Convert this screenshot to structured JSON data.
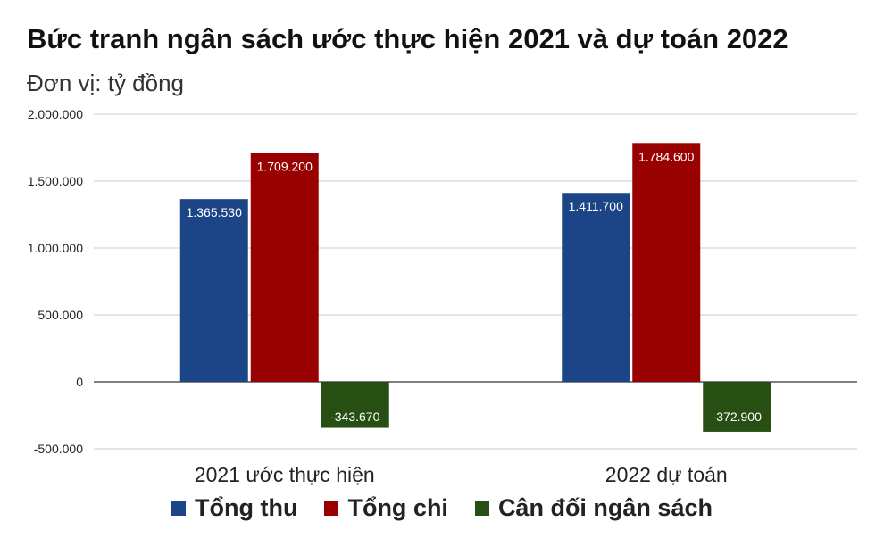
{
  "chart_data": {
    "type": "bar",
    "title": "Bức tranh ngân sách ước thực hiện 2021 và dự toán 2022",
    "subtitle": "Đơn vị: tỷ đồng",
    "categories": [
      "2021 ước thực hiện",
      "2022 dự toán"
    ],
    "series": [
      {
        "name": "Tổng thu",
        "color": "#1c4587",
        "values": [
          1365530,
          1411700
        ],
        "labels": [
          "1.365.530",
          "1.411.700"
        ]
      },
      {
        "name": "Tổng chi",
        "color": "#990000",
        "values": [
          1709200,
          1784600
        ],
        "labels": [
          "1.709.200",
          "1.784.600"
        ]
      },
      {
        "name": "Cân đối ngân sách",
        "color": "#274e13",
        "values": [
          -343670,
          -372900
        ],
        "labels": [
          "-343.670",
          "-372.900"
        ]
      }
    ],
    "ylim": [
      -500000,
      2000000
    ],
    "yticks": [
      {
        "value": 2000000,
        "label": "2.000.000"
      },
      {
        "value": 1500000,
        "label": "1.500.000"
      },
      {
        "value": 1000000,
        "label": "1.000.000"
      },
      {
        "value": 500000,
        "label": "500.000"
      },
      {
        "value": 0,
        "label": "0"
      },
      {
        "value": -500000,
        "label": "-500.000"
      }
    ],
    "grid": true,
    "legend_position": "bottom"
  }
}
